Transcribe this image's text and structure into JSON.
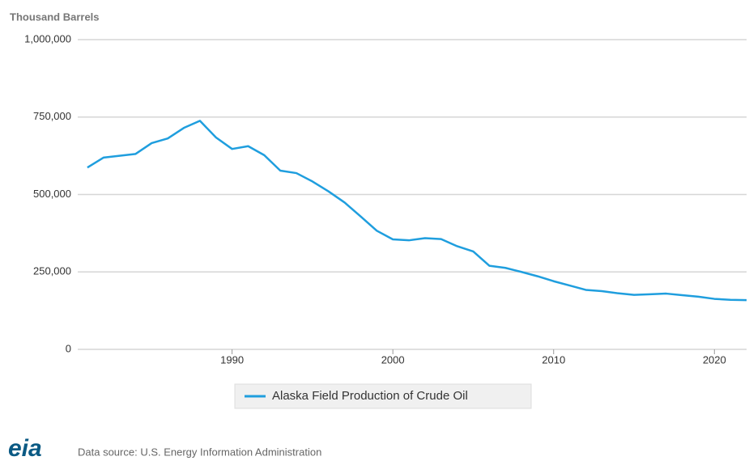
{
  "chart_data": {
    "type": "line",
    "y_label": "Thousand Barrels",
    "x": [
      1981,
      1982,
      1983,
      1984,
      1985,
      1986,
      1987,
      1988,
      1989,
      1990,
      1991,
      1992,
      1993,
      1994,
      1995,
      1996,
      1997,
      1998,
      1999,
      2000,
      2001,
      2002,
      2003,
      2004,
      2005,
      2006,
      2007,
      2008,
      2009,
      2010,
      2011,
      2012,
      2013,
      2014,
      2015,
      2016,
      2017,
      2018,
      2019,
      2020,
      2021,
      2022
    ],
    "series": [
      {
        "name": "Alaska Field Production of Crude Oil",
        "color": "#1f9ede",
        "values": [
          587000,
          619000,
          625000,
          631000,
          666000,
          681000,
          715000,
          738000,
          684000,
          647000,
          656000,
          627000,
          577000,
          569000,
          542000,
          510000,
          474000,
          429000,
          383000,
          355000,
          352000,
          359000,
          356000,
          333000,
          316000,
          270000,
          263000,
          250000,
          236000,
          220000,
          206000,
          192000,
          188000,
          181000,
          176000,
          178000,
          180000,
          175000,
          170000,
          163000,
          160000,
          159000
        ]
      }
    ],
    "xlim": [
      1980.4,
      2022
    ],
    "xticks": [
      1990,
      2000,
      2010,
      2020
    ],
    "ylim": [
      0,
      1000000
    ],
    "yticks": [
      0,
      {
        "value": 250000,
        "label": "250,000"
      },
      {
        "value": 500000,
        "label": "500,000"
      },
      {
        "value": 750000,
        "label": "750,000"
      },
      {
        "value": 1000000,
        "label": "1,000,000"
      }
    ],
    "grid": true,
    "legend": "bottom",
    "logo": "eia",
    "source": "Data source: U.S. Energy Information Administration"
  }
}
